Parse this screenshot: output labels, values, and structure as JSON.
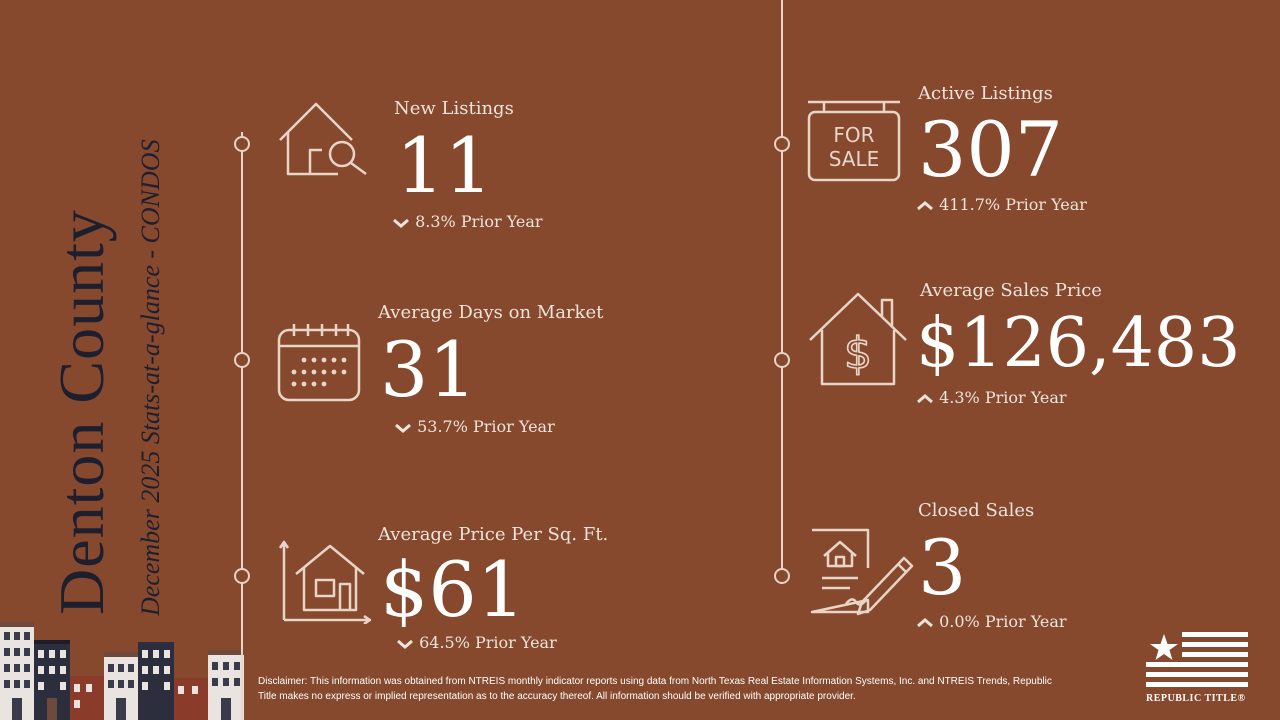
{
  "title": "Denton County",
  "subtitle": "December 2025 Stats-at-a-glance - CONDOS",
  "stats": {
    "new_listings": {
      "label": "New Listings",
      "value": "11",
      "change": "8.3% Prior Year",
      "direction": "down",
      "icon": "house-search-icon"
    },
    "avg_days": {
      "label": "Average Days on Market",
      "value": "31",
      "change": "53.7% Prior Year",
      "direction": "down",
      "icon": "calendar-icon"
    },
    "avg_price_sqft": {
      "label": "Average Price Per Sq. Ft.",
      "value": "$61",
      "change": "64.5% Prior Year",
      "direction": "down",
      "icon": "house-measure-icon"
    },
    "active_listings": {
      "label": "Active Listings",
      "value": "307",
      "change": "411.7% Prior Year",
      "direction": "up",
      "icon": "for-sale-sign-icon",
      "sign_text_1": "FOR",
      "sign_text_2": "SALE"
    },
    "avg_sales_price": {
      "label": "Average Sales Price",
      "value": "$126,483",
      "change": "4.3% Prior Year",
      "direction": "up",
      "icon": "house-dollar-icon"
    },
    "closed_sales": {
      "label": "Closed Sales",
      "value": "3",
      "change": "0.0% Prior Year",
      "direction": "up",
      "icon": "contract-signing-icon"
    }
  },
  "disclaimer": "Disclaimer: This information was obtained from NTREIS monthly indicator reports using data from North Texas Real Estate Information Systems, Inc. and NTREIS Trends, Republic Title makes no express or implied representation as to the accuracy thereof. All information should be verified with appropriate provider.",
  "logo_text": "REPUBLIC TITLE®",
  "colors": {
    "background": "#86492e",
    "title": "#1e1f2e",
    "line": "#e7d5c7"
  }
}
